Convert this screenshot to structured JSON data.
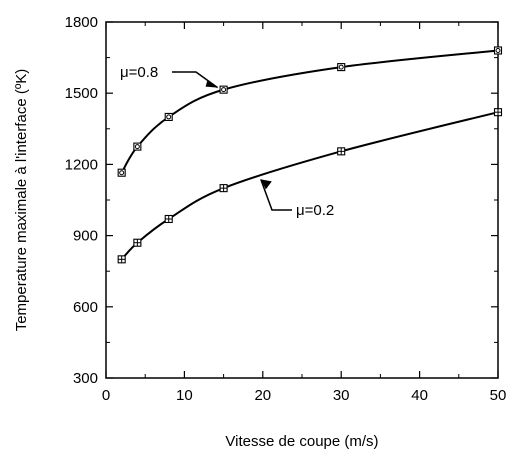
{
  "chart_data": {
    "type": "line",
    "title": "",
    "xlabel": "Vitesse de coupe (m/s)",
    "ylabel": "Temperature maximale à l'interface (ºK)",
    "xlim": [
      0,
      50
    ],
    "ylim": [
      300,
      1800
    ],
    "xticks": [
      0,
      10,
      20,
      30,
      40,
      50
    ],
    "yticks": [
      300,
      600,
      900,
      1200,
      1500,
      1800
    ],
    "grid": false,
    "series": [
      {
        "name": "μ=0.8",
        "marker": "square-circle",
        "x": [
          2,
          4,
          8,
          15,
          30,
          50
        ],
        "y": [
          1165,
          1275,
          1400,
          1515,
          1610,
          1680
        ]
      },
      {
        "name": "μ=0.2",
        "marker": "square-cross",
        "x": [
          2,
          4,
          8,
          15,
          30,
          50
        ],
        "y": [
          800,
          870,
          970,
          1100,
          1255,
          1420
        ]
      }
    ],
    "annotations": [
      "μ=0.8",
      "μ=0.2"
    ]
  }
}
